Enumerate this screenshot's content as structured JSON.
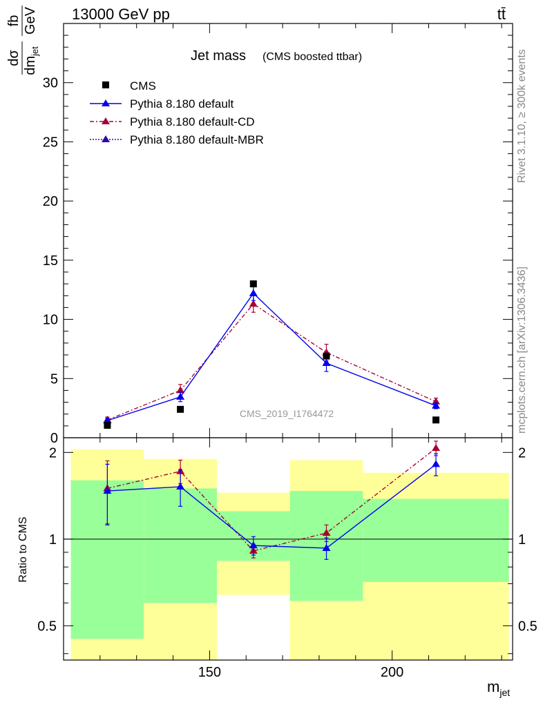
{
  "header": {
    "left": "13000 GeV pp",
    "right": "tt̄"
  },
  "side_labels": {
    "rivet": "Rivet 3.1.10, ≥ 300k events",
    "mcplots": "mcplots.cern.ch [arXiv:1306.3436]"
  },
  "colors": {
    "cms": "#000000",
    "default": "#0000ee",
    "default_cd": "#aa0033",
    "default_mbr": "#3300aa",
    "band_inner": "#99ff99",
    "band_outer": "#ffff99"
  },
  "chart_data": [
    {
      "type": "line",
      "title": "Jet mass",
      "subtitle": "(CMS boosted ttbar)",
      "analysis_tag": "CMS_2019_I1764472",
      "ylabel": "dσ/dm_jet [fb/GeV]",
      "ylabel_top": "dσ",
      "ylabel_bottom": "dm",
      "ylabel_sub": "jet",
      "ylabel_units_top": "fb",
      "ylabel_units_bottom": "GeV",
      "xlim": [
        110,
        233
      ],
      "ylim": [
        0,
        35
      ],
      "yticks": [
        0,
        5,
        10,
        15,
        20,
        25,
        30
      ],
      "legend_position": "top-left",
      "legend": [
        {
          "label": "CMS",
          "marker": "square",
          "color": "#000000"
        },
        {
          "label": "Pythia 8.180 default",
          "marker": "triangle",
          "color": "#0000ee",
          "line": "solid"
        },
        {
          "label": "Pythia 8.180 default-CD",
          "marker": "triangle",
          "color": "#aa0033",
          "line": "dashdot"
        },
        {
          "label": "Pythia 8.180 default-MBR",
          "marker": "triangle",
          "color": "#3300aa",
          "line": "dotted"
        }
      ],
      "series": [
        {
          "name": "CMS",
          "x": [
            122,
            142,
            162,
            182,
            212
          ],
          "y": [
            1.05,
            2.4,
            13.0,
            6.9,
            1.5
          ]
        },
        {
          "name": "Pythia 8.180 default",
          "x": [
            122,
            142,
            162,
            182,
            212
          ],
          "y": [
            1.45,
            3.45,
            12.2,
            6.3,
            2.7
          ],
          "err": [
            0.2,
            0.4,
            0.6,
            0.7,
            0.25
          ]
        },
        {
          "name": "Pythia 8.180 default-CD",
          "x": [
            122,
            142,
            162,
            182,
            212
          ],
          "y": [
            1.5,
            4.0,
            11.3,
            7.2,
            3.05
          ],
          "err": [
            0.25,
            0.5,
            0.7,
            0.7,
            0.3
          ]
        }
      ]
    },
    {
      "type": "line",
      "ylabel": "Ratio to CMS",
      "xlabel": "m_jet",
      "xlabel_main": "m",
      "xlabel_sub": "jet",
      "xlim": [
        110,
        233
      ],
      "ylim": [
        0.38,
        2.25
      ],
      "xticks": [
        150,
        200
      ],
      "yticks": [
        0.5,
        1,
        2
      ],
      "ytick_labels": [
        "0.5",
        "1",
        "2"
      ],
      "bands": [
        {
          "x": [
            112,
            132
          ],
          "inner": [
            0.45,
            1.6
          ],
          "outer": [
            0.38,
            2.05
          ]
        },
        {
          "x": [
            132,
            152
          ],
          "inner": [
            0.6,
            1.5
          ],
          "outer": [
            0.38,
            1.9
          ]
        },
        {
          "x": [
            152,
            172
          ],
          "inner": [
            0.84,
            1.25
          ],
          "outer": [
            0.64,
            1.45
          ]
        },
        {
          "x": [
            172,
            192
          ],
          "inner": [
            0.61,
            1.47
          ],
          "outer": [
            0.38,
            1.88
          ]
        },
        {
          "x": [
            192,
            232
          ],
          "inner": [
            0.71,
            1.38
          ],
          "outer": [
            0.38,
            1.7
          ]
        }
      ],
      "series": [
        {
          "name": "Pythia 8.180 default",
          "x": [
            122,
            142,
            162,
            182,
            212
          ],
          "y": [
            1.47,
            1.52,
            0.95,
            0.93,
            1.82
          ],
          "err": [
            0.35,
            0.22,
            0.07,
            0.08,
            0.16
          ]
        },
        {
          "name": "Pythia 8.180 default-CD",
          "x": [
            122,
            142,
            162,
            182,
            212
          ],
          "y": [
            1.5,
            1.72,
            0.91,
            1.05,
            2.07
          ],
          "err": [
            0.37,
            0.16,
            0.05,
            0.07,
            0.12
          ]
        }
      ]
    }
  ]
}
